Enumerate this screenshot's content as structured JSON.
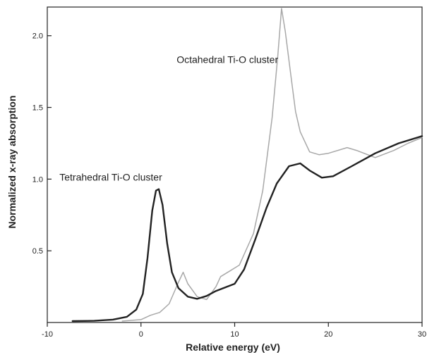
{
  "chart_data": {
    "type": "line",
    "title": "",
    "xlabel": "Relative energy (eV)",
    "ylabel": "Normalized x-ray absorption",
    "xlim": [
      -10,
      30
    ],
    "ylim": [
      0,
      2.2
    ],
    "x_ticks": [
      -10,
      0,
      10,
      20,
      30
    ],
    "y_ticks": [
      0.5,
      1.0,
      1.5,
      2.0
    ],
    "x_tick_labels": [
      "-10",
      "0",
      "10",
      "20",
      "30"
    ],
    "y_tick_labels": [
      "0.5",
      "1.0",
      "1.5",
      "2.0"
    ],
    "grid": false,
    "legend": "none",
    "annotations": [
      {
        "text": "Tetrahedral Ti-O cluster",
        "x": -8.7,
        "y": 0.99
      },
      {
        "text": "Octahedral Ti-O cluster",
        "x": 3.8,
        "y": 1.81
      }
    ],
    "series": [
      {
        "color": "#222222",
        "points": [
          [
            -7.3,
            0.01
          ],
          [
            -5,
            0.012
          ],
          [
            -3,
            0.02
          ],
          [
            -1.5,
            0.04
          ],
          [
            -0.5,
            0.09
          ],
          [
            0.2,
            0.2
          ],
          [
            0.7,
            0.45
          ],
          [
            1.2,
            0.78
          ],
          [
            1.6,
            0.92
          ],
          [
            1.9,
            0.93
          ],
          [
            2.3,
            0.82
          ],
          [
            2.8,
            0.55
          ],
          [
            3.3,
            0.35
          ],
          [
            4,
            0.24
          ],
          [
            5,
            0.18
          ],
          [
            6,
            0.165
          ],
          [
            7,
            0.185
          ],
          [
            8,
            0.22
          ],
          [
            10,
            0.27
          ],
          [
            11,
            0.37
          ],
          [
            12.2,
            0.58
          ],
          [
            13.4,
            0.8
          ],
          [
            14.5,
            0.97
          ],
          [
            15.8,
            1.09
          ],
          [
            17,
            1.11
          ],
          [
            18,
            1.06
          ],
          [
            19.3,
            1.01
          ],
          [
            20.5,
            1.02
          ],
          [
            22.5,
            1.09
          ],
          [
            25,
            1.18
          ],
          [
            27.5,
            1.25
          ],
          [
            30,
            1.3
          ]
        ]
      },
      {
        "color": "#a8a8a8",
        "points": [
          [
            -2,
            0.01
          ],
          [
            0,
            0.02
          ],
          [
            1,
            0.05
          ],
          [
            2,
            0.07
          ],
          [
            3,
            0.13
          ],
          [
            4,
            0.28
          ],
          [
            4.5,
            0.35
          ],
          [
            5,
            0.27
          ],
          [
            6,
            0.18
          ],
          [
            7,
            0.16
          ],
          [
            8,
            0.25
          ],
          [
            8.5,
            0.32
          ],
          [
            9.5,
            0.36
          ],
          [
            10.5,
            0.4
          ],
          [
            12,
            0.62
          ],
          [
            13,
            0.92
          ],
          [
            14,
            1.43
          ],
          [
            14.6,
            1.86
          ],
          [
            15,
            2.19
          ],
          [
            15.4,
            2.03
          ],
          [
            16,
            1.72
          ],
          [
            16.5,
            1.47
          ],
          [
            17,
            1.33
          ],
          [
            18,
            1.19
          ],
          [
            19,
            1.17
          ],
          [
            20,
            1.18
          ],
          [
            22,
            1.22
          ],
          [
            23,
            1.2
          ],
          [
            25,
            1.15
          ],
          [
            27,
            1.2
          ],
          [
            28.5,
            1.25
          ],
          [
            30,
            1.29
          ]
        ]
      }
    ]
  }
}
